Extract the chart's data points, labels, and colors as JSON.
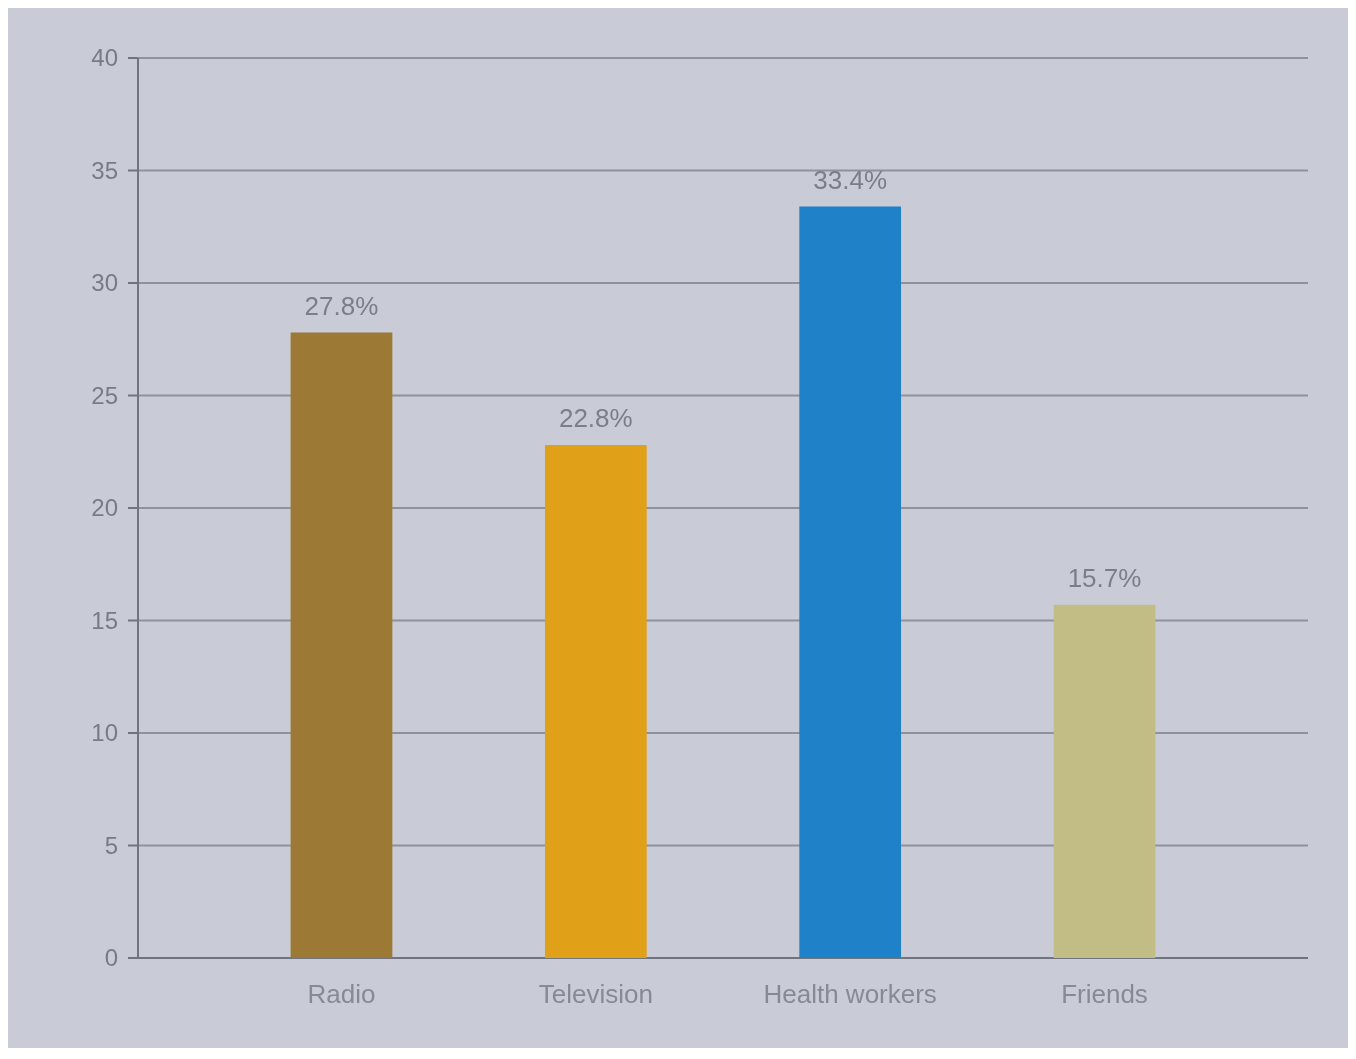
{
  "chart_data": {
    "type": "bar",
    "categories": [
      "Radio",
      "Television",
      "Health workers",
      "Friends"
    ],
    "values": [
      27.8,
      22.8,
      33.4,
      15.7
    ],
    "colors": [
      "#9c7a35",
      "#e0a018",
      "#1f82c8",
      "#c2bc85"
    ],
    "value_labels": [
      "27.8%",
      "22.8%",
      "33.4%",
      "15.7%"
    ],
    "ylim": [
      0,
      40
    ],
    "yticks": [
      0,
      5,
      10,
      15,
      20,
      25,
      30,
      35,
      40
    ],
    "grid": "y"
  }
}
